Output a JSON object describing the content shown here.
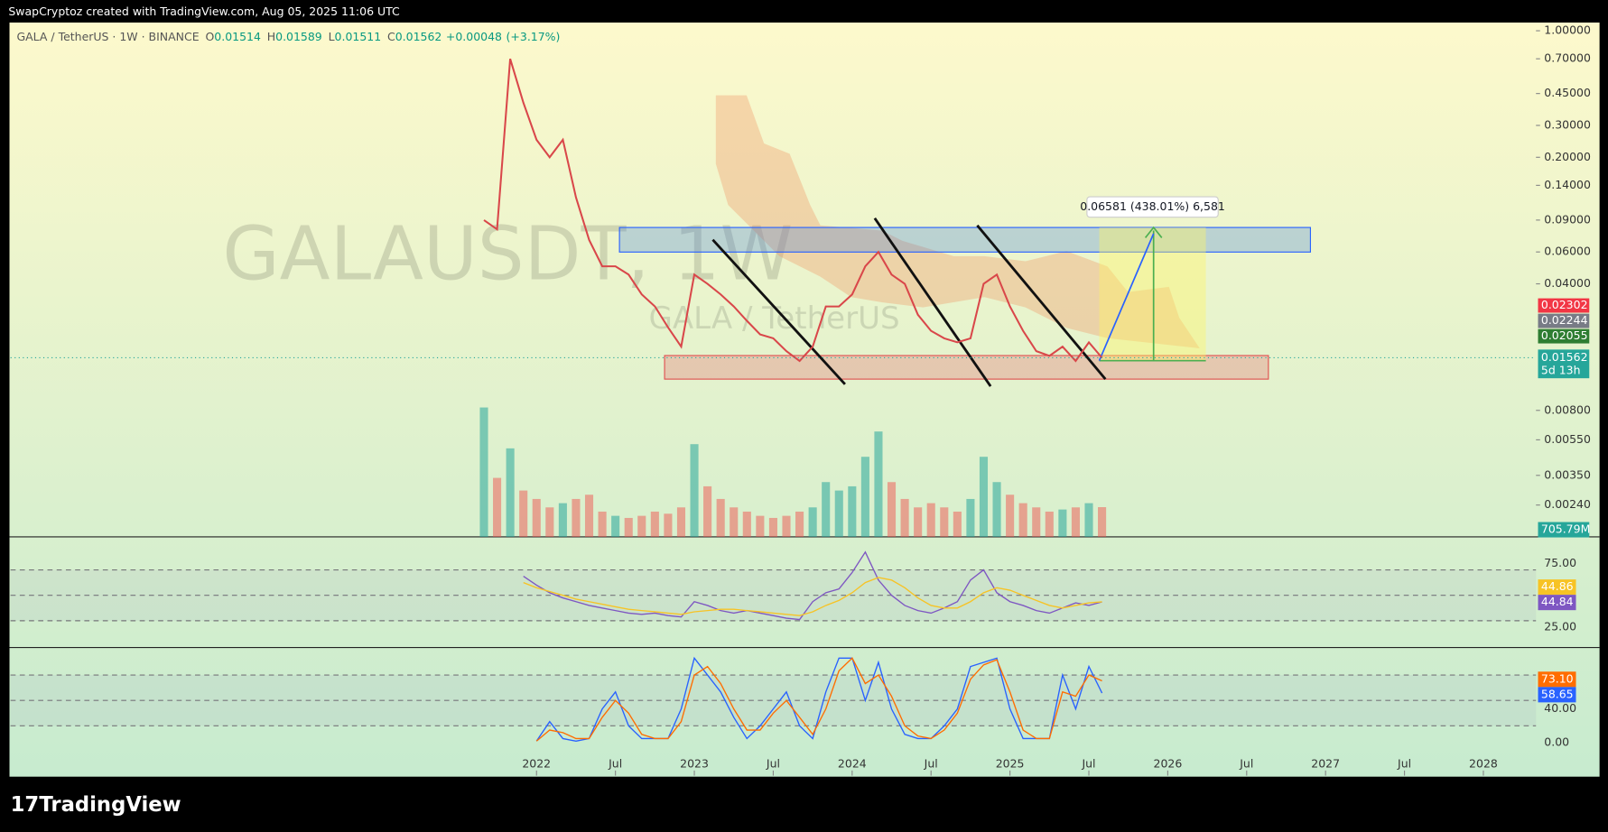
{
  "chart_data": {
    "type": "line",
    "header": "SwapCryptoz created with TradingView.com, Aug 05, 2025 11:06 UTC",
    "subtitle": "GALA / TetherUS · 1W · BINANCE",
    "ohlc": [
      {
        "key": "O",
        "value": 0.01514
      },
      {
        "key": "H",
        "value": 0.01589
      },
      {
        "key": "L",
        "value": 0.01511
      },
      {
        "key": "C",
        "value": 0.01562
      }
    ],
    "change": {
      "value": 0.00048,
      "label": "+0.00048"
    },
    "change_pct": {
      "value": 3.17,
      "label": "(+3.17%)"
    },
    "watermark": "GALAUSDT, 1W",
    "watermark_sub": "GALA / TetherUS",
    "measure_label": "0.06581 (438.01%) 6,581",
    "brand": "TradingView",
    "log_scale": true,
    "x": [
      "2021-09",
      "2021-10",
      "2021-11",
      "2021-12",
      "2022-01",
      "2022-02",
      "2022-03",
      "2022-04",
      "2022-05",
      "2022-06",
      "2022-07",
      "2022-08",
      "2022-09",
      "2022-10",
      "2022-11",
      "2022-12",
      "2023-01",
      "2023-02",
      "2023-03",
      "2023-04",
      "2023-05",
      "2023-06",
      "2023-07",
      "2023-08",
      "2023-09",
      "2023-10",
      "2023-11",
      "2023-12",
      "2024-01",
      "2024-02",
      "2024-03",
      "2024-04",
      "2024-05",
      "2024-06",
      "2024-07",
      "2024-08",
      "2024-09",
      "2024-10",
      "2024-11",
      "2024-12",
      "2025-01",
      "2025-02",
      "2025-03",
      "2025-04",
      "2025-05",
      "2025-06",
      "2025-07",
      "2025-08"
    ],
    "xlim": [
      "2018-09",
      "2028-05"
    ],
    "xticks": [
      {
        "value": "2022-01",
        "label": "2022"
      },
      {
        "value": "2022-07",
        "label": "Jul"
      },
      {
        "value": "2023-01",
        "label": "2023"
      },
      {
        "value": "2023-07",
        "label": "Jul"
      },
      {
        "value": "2024-01",
        "label": "2024"
      },
      {
        "value": "2024-07",
        "label": "Jul"
      },
      {
        "value": "2025-01",
        "label": "2025"
      },
      {
        "value": "2025-07",
        "label": "Jul"
      },
      {
        "value": "2026-01",
        "label": "2026"
      },
      {
        "value": "2026-07",
        "label": "Jul"
      },
      {
        "value": "2027-01",
        "label": "2027"
      },
      {
        "value": "2027-07",
        "label": "Jul"
      },
      {
        "value": "2028-01",
        "label": "2028"
      }
    ],
    "series": [
      {
        "name": "GALA / TetherUS",
        "color": "#d9474a",
        "values": [
          0.09,
          0.08,
          0.7,
          0.4,
          0.25,
          0.2,
          0.25,
          0.12,
          0.07,
          0.05,
          0.05,
          0.045,
          0.035,
          0.03,
          0.023,
          0.018,
          0.045,
          0.04,
          0.035,
          0.03,
          0.025,
          0.021,
          0.02,
          0.017,
          0.015,
          0.018,
          0.03,
          0.03,
          0.035,
          0.05,
          0.06,
          0.045,
          0.04,
          0.027,
          0.022,
          0.02,
          0.019,
          0.02,
          0.04,
          0.045,
          0.03,
          0.022,
          0.017,
          0.016,
          0.018,
          0.015,
          0.019,
          0.01562
        ]
      }
    ],
    "ylim": [
      0.0016,
      1.11
    ],
    "yticks": [
      {
        "value": 1,
        "label": "1.00000"
      },
      {
        "value": 0.7,
        "label": "0.70000"
      },
      {
        "value": 0.45,
        "label": "0.45000"
      },
      {
        "value": 0.3,
        "label": "0.30000"
      },
      {
        "value": 0.2,
        "label": "0.20000"
      },
      {
        "value": 0.14,
        "label": "0.14000"
      },
      {
        "value": 0.09,
        "label": "0.09000"
      },
      {
        "value": 0.06,
        "label": "0.06000"
      },
      {
        "value": 0.04,
        "label": "0.04000"
      },
      {
        "value": 0.008,
        "label": "0.00800"
      },
      {
        "value": 0.0055,
        "label": "0.00550"
      },
      {
        "value": 0.0035,
        "label": "0.00350"
      },
      {
        "value": 0.0024,
        "label": "0.00240"
      }
    ],
    "price_tags": [
      {
        "value": 0.02302,
        "color": "#f23645"
      },
      {
        "value": 0.02244,
        "color": "#787b86"
      },
      {
        "value": 0.02055,
        "color": "#2e7d32"
      }
    ],
    "current": {
      "value": 0.01562,
      "countdown": "5d 13h",
      "color": "#26a69a"
    },
    "volume": {
      "values": [
        3070,
        1400,
        2100,
        1100,
        900,
        700,
        800,
        900,
        1000,
        600,
        500,
        450,
        500,
        600,
        550,
        700,
        2200,
        1200,
        900,
        700,
        600,
        500,
        450,
        500,
        600,
        700,
        1300,
        1100,
        1200,
        1900,
        2500,
        1300,
        900,
        700,
        800,
        700,
        600,
        900,
        1900,
        1300,
        1000,
        800,
        700,
        600,
        650,
        700,
        800,
        705.79
      ],
      "ylim": [
        0,
        12200
      ],
      "tag": {
        "value": 705.79,
        "label": "705.79M"
      }
    },
    "rsi": {
      "ylim": [
        10.5,
        89.5
      ],
      "yticks": [
        {
          "value": 75,
          "label": "75.00"
        },
        {
          "value": 25,
          "label": "25.00"
        }
      ],
      "bands": [
        30,
        50,
        70
      ],
      "series": [
        {
          "name": "RSI",
          "color": "#7e57c2",
          "values": [
            null,
            null,
            null,
            65,
            58,
            52,
            48,
            45,
            42,
            40,
            38,
            36,
            35,
            36,
            34,
            33,
            45,
            42,
            38,
            36,
            38,
            36,
            34,
            32,
            31,
            45,
            52,
            55,
            68,
            84,
            62,
            50,
            42,
            38,
            36,
            40,
            45,
            62,
            70,
            52,
            45,
            42,
            38,
            36,
            40,
            44,
            42,
            44.84
          ]
        },
        {
          "name": "RSI MA",
          "color": "#f7c325",
          "values": [
            null,
            null,
            null,
            60,
            56,
            53,
            50,
            47,
            45,
            43,
            41,
            39,
            38,
            37,
            36,
            35,
            37,
            38,
            39,
            39,
            38,
            37,
            36,
            35,
            34,
            37,
            42,
            46,
            52,
            60,
            64,
            62,
            56,
            48,
            42,
            40,
            40,
            45,
            52,
            56,
            54,
            50,
            46,
            42,
            40,
            42,
            44,
            44.86
          ]
        }
      ],
      "tags": [
        {
          "value": 44.86,
          "label": "44.86",
          "color": "#f7c325"
        },
        {
          "value": 44.84,
          "label": "44.84",
          "color": "#7e57c2"
        }
      ]
    },
    "stoch": {
      "ylim": [
        -38.8,
        110
      ],
      "yticks": [
        {
          "value": 40,
          "label": "40.00"
        },
        {
          "value": 0,
          "label": "0.00"
        }
      ],
      "bands": [
        20,
        50,
        80
      ],
      "series": [
        {
          "name": "%K",
          "color": "#2962ff",
          "values": [
            null,
            null,
            null,
            null,
            2,
            25,
            5,
            2,
            5,
            40,
            60,
            20,
            5,
            5,
            5,
            40,
            100,
            80,
            60,
            30,
            5,
            20,
            40,
            60,
            20,
            5,
            60,
            100,
            100,
            50,
            95,
            40,
            10,
            5,
            5,
            20,
            40,
            90,
            95,
            100,
            40,
            5,
            5,
            5,
            80,
            40,
            90,
            58.65
          ]
        },
        {
          "name": "%D",
          "color": "#ff6d00",
          "values": [
            null,
            null,
            null,
            null,
            2,
            15,
            12,
            5,
            5,
            30,
            50,
            35,
            10,
            5,
            5,
            25,
            80,
            90,
            70,
            40,
            15,
            15,
            35,
            50,
            30,
            10,
            40,
            85,
            100,
            70,
            80,
            55,
            20,
            8,
            5,
            15,
            35,
            75,
            92,
            98,
            60,
            15,
            5,
            5,
            60,
            55,
            80,
            73.1
          ]
        }
      ],
      "tags": [
        {
          "value": 73.1,
          "label": "73.10",
          "color": "#ff6d00"
        },
        {
          "value": 58.65,
          "label": "58.65",
          "color": "#2962ff"
        }
      ]
    }
  }
}
